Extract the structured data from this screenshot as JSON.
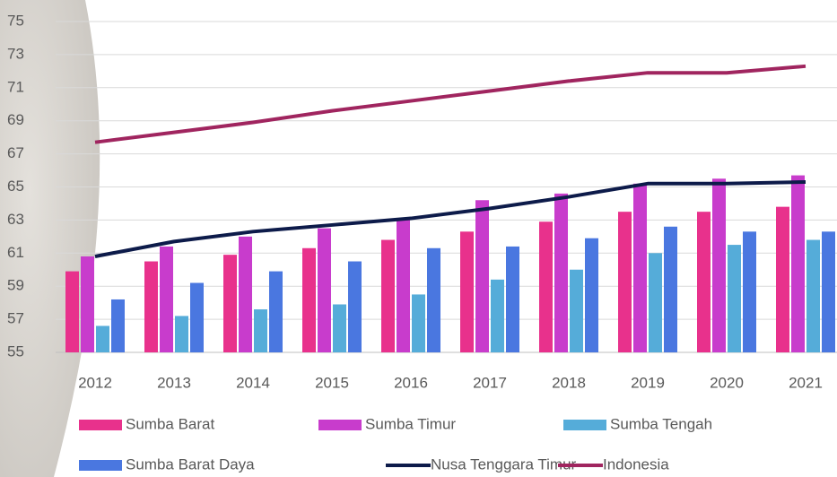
{
  "chart_data": {
    "type": "bar",
    "categories": [
      "2012",
      "2013",
      "2014",
      "2015",
      "2016",
      "2017",
      "2018",
      "2019",
      "2020",
      "2021"
    ],
    "series": [
      {
        "name": "Sumba Barat",
        "color": "#e8318c",
        "values": [
          59.9,
          60.5,
          60.9,
          61.3,
          61.8,
          62.3,
          62.9,
          63.5,
          63.5,
          63.8
        ]
      },
      {
        "name": "Sumba Timur",
        "color": "#c83ccc",
        "values": [
          60.8,
          61.4,
          62.0,
          62.5,
          63.0,
          64.2,
          64.6,
          65.2,
          65.5,
          65.7
        ]
      },
      {
        "name": "Sumba Tengah",
        "color": "#55acd9",
        "values": [
          56.6,
          57.2,
          57.6,
          57.9,
          58.5,
          59.4,
          60.0,
          61.0,
          61.5,
          61.8
        ]
      },
      {
        "name": "Sumba Barat Daya",
        "color": "#4a77e0",
        "values": [
          58.2,
          59.2,
          59.9,
          60.5,
          61.3,
          61.4,
          61.9,
          62.6,
          62.3,
          62.3
        ]
      },
      {
        "name": "Nusa Tenggara Timur",
        "color": "#0d1b4a",
        "type": "line",
        "values": [
          60.8,
          61.7,
          62.3,
          62.7,
          63.1,
          63.7,
          64.4,
          65.2,
          65.2,
          65.3
        ]
      },
      {
        "name": "Indonesia",
        "color": "#a0255f",
        "type": "line",
        "values": [
          67.7,
          68.3,
          68.9,
          69.6,
          70.2,
          70.8,
          71.4,
          71.9,
          71.9,
          72.3
        ]
      }
    ],
    "ylim": [
      55,
      75
    ],
    "yticks": [
      55,
      57,
      59,
      61,
      63,
      65,
      67,
      69,
      71,
      73,
      75
    ],
    "grid": true
  }
}
